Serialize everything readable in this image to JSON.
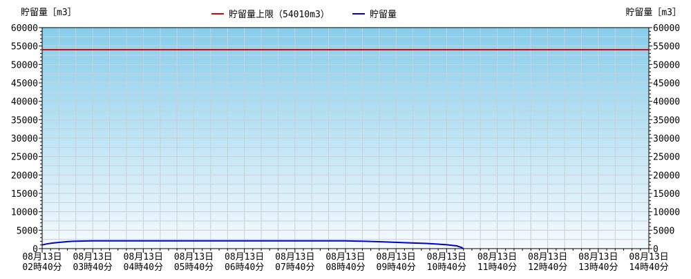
{
  "chart_data": {
    "type": "line",
    "ylabel_left": "貯留量［m3］",
    "ylabel_right": "貯留量［m3］",
    "ylim": [
      0,
      60000
    ],
    "yticks": [
      0,
      5000,
      10000,
      15000,
      20000,
      25000,
      30000,
      35000,
      40000,
      45000,
      50000,
      55000,
      60000
    ],
    "x_tick_labels": [
      [
        "08月13日",
        "02時40分"
      ],
      [
        "08月13日",
        "03時40分"
      ],
      [
        "08月13日",
        "04時40分"
      ],
      [
        "08月13日",
        "05時40分"
      ],
      [
        "08月13日",
        "06時40分"
      ],
      [
        "08月13日",
        "07時40分"
      ],
      [
        "08月13日",
        "08時40分"
      ],
      [
        "08月13日",
        "09時40分"
      ],
      [
        "08月13日",
        "10時40分"
      ],
      [
        "08月13日",
        "11時40分"
      ],
      [
        "08月13日",
        "12時40分"
      ],
      [
        "08月13日",
        "13時40分"
      ],
      [
        "08月13日",
        "14時40分"
      ]
    ],
    "x_unit": "hours from 02:40",
    "xlim": [
      0,
      12
    ],
    "grid": true,
    "legend_placement": "top-center",
    "background_gradient": [
      "#87CEEB",
      "#F5FAFE"
    ],
    "series": [
      {
        "name": "貯留量上限（54010m3）",
        "color": "#E00000",
        "kind": "threshold",
        "value": 54010
      },
      {
        "name": "貯留量",
        "color": "#0000CC",
        "kind": "line",
        "points": [
          [
            0,
            1000
          ],
          [
            0.1,
            1300
          ],
          [
            0.2,
            1500
          ],
          [
            0.35,
            1700
          ],
          [
            0.5,
            1900
          ],
          [
            0.6,
            2000
          ],
          [
            1.0,
            2100
          ],
          [
            2.0,
            2100
          ],
          [
            3.0,
            2100
          ],
          [
            4.0,
            2100
          ],
          [
            5.0,
            2100
          ],
          [
            6.0,
            2100
          ],
          [
            6.4,
            2000
          ],
          [
            6.8,
            1800
          ],
          [
            7.2,
            1600
          ],
          [
            7.6,
            1400
          ],
          [
            7.8,
            1250
          ],
          [
            8.0,
            1050
          ],
          [
            8.1,
            900
          ],
          [
            8.2,
            750
          ],
          [
            8.25,
            500
          ],
          [
            8.3,
            300
          ],
          [
            8.33,
            0
          ]
        ]
      }
    ]
  }
}
